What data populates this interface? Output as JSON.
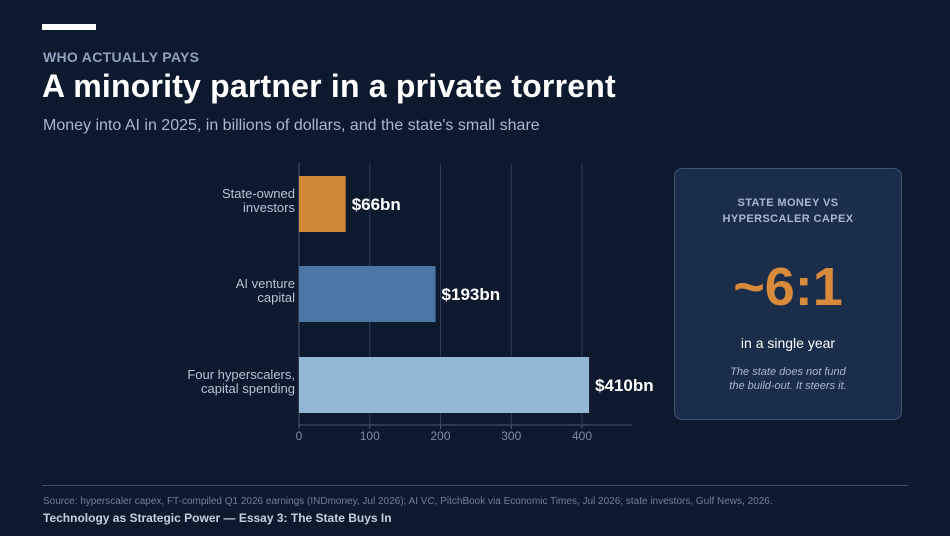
{
  "header": {
    "kicker": "WHO ACTUALLY PAYS",
    "title": "A minority partner in a private torrent",
    "subtitle": "Money into AI in 2025, in billions of dollars, and the state's small share"
  },
  "chart_data": {
    "type": "bar",
    "orientation": "horizontal",
    "categories": [
      [
        "State-owned",
        "investors"
      ],
      [
        "AI venture",
        "capital"
      ],
      [
        "Four hyperscalers,",
        "capital spending"
      ]
    ],
    "values": [
      66,
      193,
      410
    ],
    "value_labels": [
      "$66bn",
      "$193bn",
      "$410bn"
    ],
    "colors": [
      "#d08838",
      "#4a77a6",
      "#93b8d6"
    ],
    "xlim": [
      0,
      470
    ],
    "xticks": [
      0,
      100,
      200,
      300,
      400
    ],
    "grid": true,
    "legend": "none"
  },
  "callout": {
    "label": "STATE MONEY VS HYPERSCALER CAPEX",
    "ratio": "~6:1",
    "caption": "in a single year",
    "note": "The state does not fund the build-out. It steers it."
  },
  "footer": {
    "source": "Source: hyperscaler capex, FT-compiled Q1 2026 earnings (INDmoney, Jul 2026); AI VC, PitchBook via Economic Times, Jul 2026; state investors, Gulf News, 2026.",
    "series": "Technology as Strategic Power  —  Essay 3: The State Buys In"
  }
}
